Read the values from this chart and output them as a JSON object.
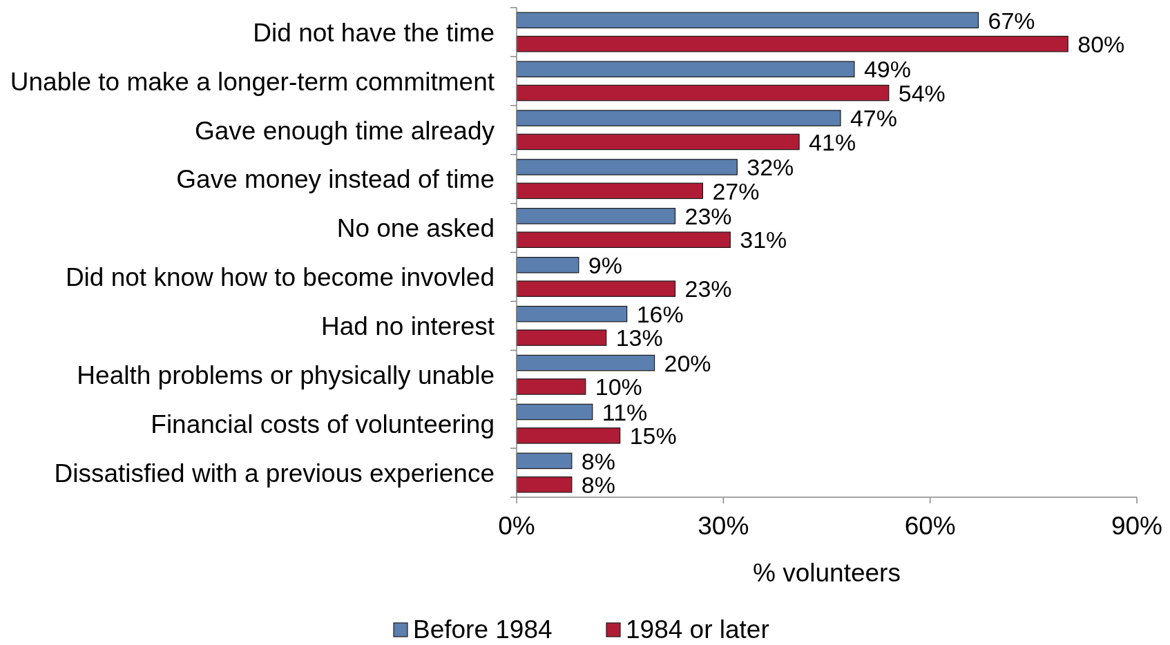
{
  "chart_data": {
    "type": "bar",
    "orientation": "horizontal",
    "xlabel": "% volunteers",
    "categories": [
      "Did not have the time",
      "Unable to make a longer-term commitment",
      "Gave enough time already",
      "Gave money instead of time",
      "No one asked",
      "Did not know how to become invovled",
      "Had no interest",
      "Health problems or physically unable",
      "Financial costs of volunteering",
      "Dissatisfied with a previous experience"
    ],
    "series": [
      {
        "name": "Before 1984",
        "color": "#5b7fae",
        "values": [
          67,
          49,
          47,
          32,
          23,
          9,
          16,
          20,
          11,
          8
        ],
        "value_labels": [
          "67%",
          "49%",
          "47%",
          "32%",
          "23%",
          "9%",
          "16%",
          "20%",
          "11%",
          "8%"
        ]
      },
      {
        "name": "1984 or later",
        "color": "#b01c36",
        "values": [
          80,
          54,
          41,
          27,
          31,
          23,
          13,
          10,
          15,
          8
        ],
        "value_labels": [
          "80%",
          "54%",
          "41%",
          "27%",
          "31%",
          "23%",
          "13%",
          "10%",
          "15%",
          "8%"
        ]
      }
    ],
    "xlim": [
      0,
      90
    ],
    "xticks": [
      {
        "value": 0,
        "label": "0%"
      },
      {
        "value": 30,
        "label": "30%"
      },
      {
        "value": 60,
        "label": "60%"
      },
      {
        "value": 90,
        "label": "90%"
      }
    ],
    "grid": false,
    "legend": "bottom"
  }
}
